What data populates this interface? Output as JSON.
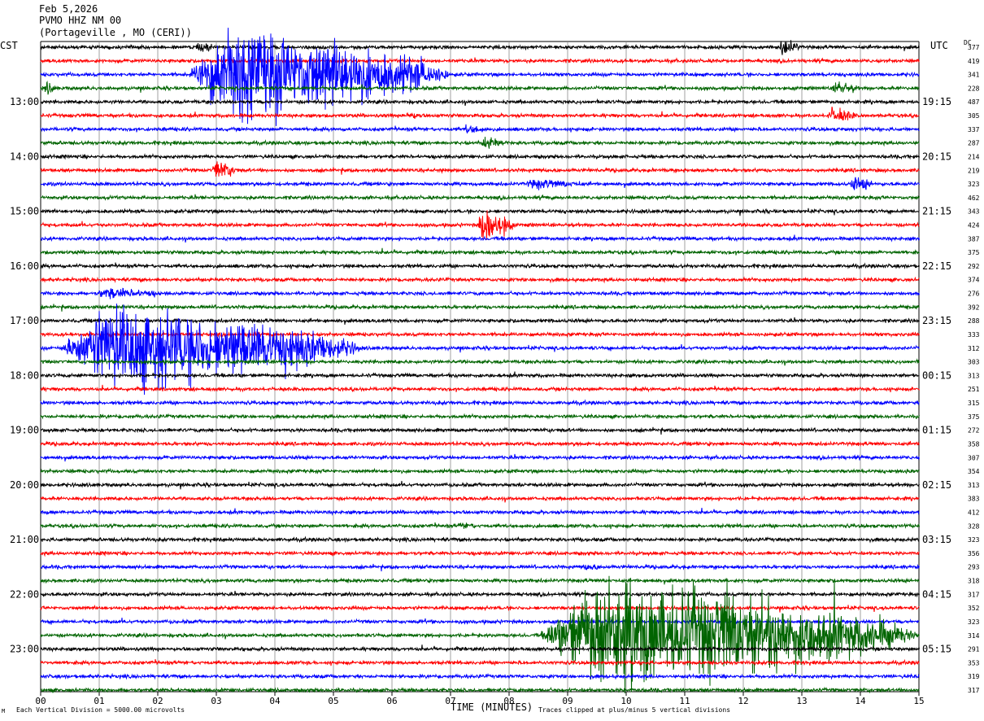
{
  "header": {
    "date": "Feb 5,2026",
    "station": "PVMO HHZ NM 00",
    "location": "(Portageville , MO (CERI))"
  },
  "labels": {
    "left_zone": "CST",
    "right_zone": "UTC",
    "dc": "DC"
  },
  "footer": {
    "scale": "Each Vertical Division = 5000.00 microvolts",
    "title": "TIME (MINUTES)",
    "clip": "Traces clipped at plus/minus 5 vertical divisions",
    "mark": "M"
  },
  "chart_data": {
    "type": "line",
    "title": "",
    "xlabel": "TIME (MINUTES)",
    "xlim": [
      0,
      15
    ],
    "x_ticks": [
      "00",
      "01",
      "02",
      "03",
      "04",
      "05",
      "06",
      "07",
      "08",
      "09",
      "10",
      "11",
      "12",
      "13",
      "14",
      "15"
    ],
    "trace_minutes": 15,
    "trace_colors": [
      "#000000",
      "#ff0000",
      "#0000ff",
      "#006400"
    ],
    "left_hour_labels": [
      {
        "row": 4,
        "label": "13:00"
      },
      {
        "row": 8,
        "label": "14:00"
      },
      {
        "row": 12,
        "label": "15:00"
      },
      {
        "row": 16,
        "label": "16:00"
      },
      {
        "row": 20,
        "label": "17:00"
      },
      {
        "row": 24,
        "label": "18:00"
      },
      {
        "row": 28,
        "label": "19:00"
      },
      {
        "row": 32,
        "label": "20:00"
      },
      {
        "row": 36,
        "label": "21:00"
      },
      {
        "row": 40,
        "label": "22:00"
      },
      {
        "row": 44,
        "label": "23:00"
      }
    ],
    "right_hour_labels": [
      {
        "row": 4,
        "label": "19:15"
      },
      {
        "row": 8,
        "label": "20:15"
      },
      {
        "row": 12,
        "label": "21:15"
      },
      {
        "row": 16,
        "label": "22:15"
      },
      {
        "row": 20,
        "label": "23:15"
      },
      {
        "row": 24,
        "label": "00:15"
      },
      {
        "row": 28,
        "label": "01:15"
      },
      {
        "row": 32,
        "label": "02:15"
      },
      {
        "row": 36,
        "label": "03:15"
      },
      {
        "row": 40,
        "label": "04:15"
      },
      {
        "row": 44,
        "label": "05:15"
      }
    ],
    "dc_offsets": [
      377,
      419,
      341,
      228,
      487,
      305,
      337,
      287,
      214,
      219,
      323,
      462,
      343,
      424,
      387,
      375,
      292,
      374,
      276,
      392,
      288,
      333,
      312,
      303,
      313,
      251,
      315,
      375,
      272,
      358,
      307,
      354,
      313,
      383,
      412,
      328,
      323,
      356,
      293,
      318,
      317,
      352,
      323,
      314,
      291,
      353,
      319,
      317
    ],
    "events": [
      {
        "row": 0,
        "start": 2.6,
        "end": 3.0,
        "amp": 8
      },
      {
        "row": 0,
        "start": 12.6,
        "end": 13.0,
        "amp": 12
      },
      {
        "row": 2,
        "start": 2.5,
        "end": 7.0,
        "amp": 60
      },
      {
        "row": 3,
        "start": 0.05,
        "end": 0.3,
        "amp": 9
      },
      {
        "row": 3,
        "start": 13.5,
        "end": 14.0,
        "amp": 10
      },
      {
        "row": 5,
        "start": 6.2,
        "end": 6.6,
        "amp": 6
      },
      {
        "row": 5,
        "start": 13.4,
        "end": 14.0,
        "amp": 10
      },
      {
        "row": 6,
        "start": 7.2,
        "end": 7.7,
        "amp": 7
      },
      {
        "row": 7,
        "start": 7.5,
        "end": 8.0,
        "amp": 9
      },
      {
        "row": 9,
        "start": 2.9,
        "end": 3.4,
        "amp": 12
      },
      {
        "row": 10,
        "start": 8.2,
        "end": 9.5,
        "amp": 7
      },
      {
        "row": 10,
        "start": 13.8,
        "end": 14.3,
        "amp": 10
      },
      {
        "row": 13,
        "start": 7.45,
        "end": 8.1,
        "amp": 25
      },
      {
        "row": 18,
        "start": 0.9,
        "end": 2.2,
        "amp": 8
      },
      {
        "row": 22,
        "start": 0.3,
        "end": 5.5,
        "amp": 55
      },
      {
        "row": 35,
        "start": 7.1,
        "end": 7.5,
        "amp": 6
      },
      {
        "row": 38,
        "start": 9.2,
        "end": 9.8,
        "amp": 5
      },
      {
        "row": 43,
        "start": 8.5,
        "end": 15.0,
        "amp": 70
      }
    ]
  }
}
